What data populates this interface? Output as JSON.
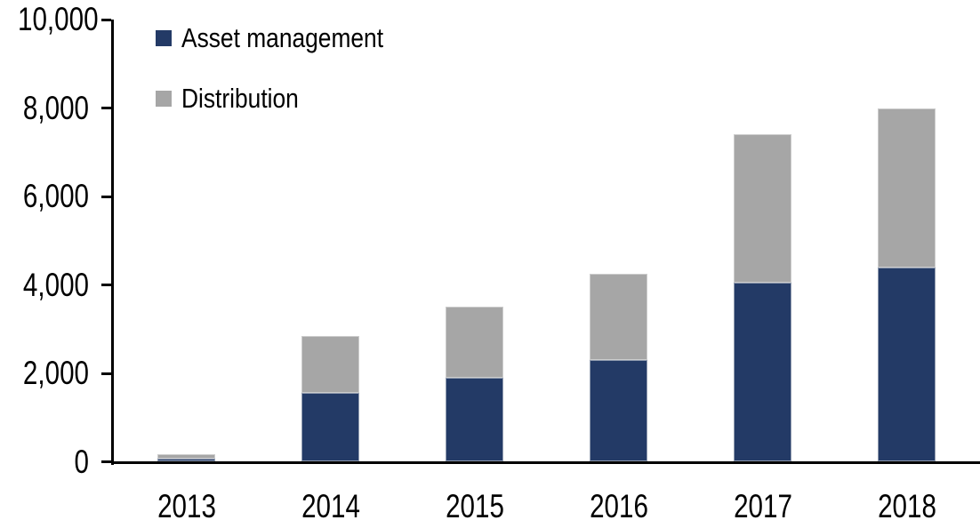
{
  "chart_data": {
    "type": "bar",
    "stacked": true,
    "title": "",
    "xlabel": "",
    "ylabel": "",
    "categories": [
      "2013",
      "2014",
      "2015",
      "2016",
      "2017",
      "2018"
    ],
    "series": [
      {
        "name": "Asset management",
        "color": "#233A66",
        "values": [
          75,
          1550,
          1900,
          2300,
          4050,
          4400
        ]
      },
      {
        "name": "Distribution",
        "color": "#A6A6A6",
        "values": [
          100,
          1300,
          1600,
          1950,
          3350,
          3600
        ]
      }
    ],
    "totals": [
      175,
      2850,
      3500,
      4250,
      7400,
      8000
    ],
    "ylim": [
      0,
      10000
    ],
    "ytick_labels": [
      "0",
      "2,000",
      "4,000",
      "6,000",
      "8,000",
      "10,000"
    ],
    "grid": false,
    "legend_position": "top-left",
    "axis_color": "#000000",
    "background": "#FFFFFF"
  }
}
